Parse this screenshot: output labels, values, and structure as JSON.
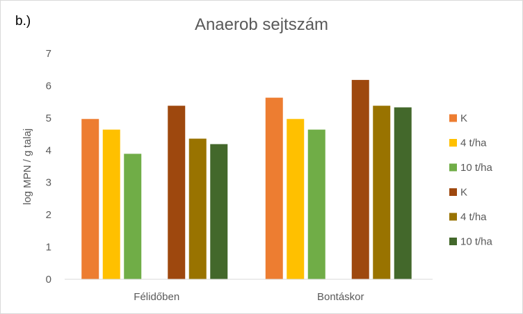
{
  "panel_label": "b.)",
  "chart_data": {
    "type": "bar",
    "title": "Anaerob sejtszám",
    "xlabel": "",
    "ylabel": "log MPN / g talaj",
    "ylim": [
      0,
      7
    ],
    "yticks": [
      0,
      1,
      2,
      3,
      4,
      5,
      6,
      7
    ],
    "grid": false,
    "legend_position": "right",
    "categories": [
      "Félidőben",
      "Bontáskor"
    ],
    "series": [
      {
        "name": "K",
        "color": "#ED7D31",
        "values": [
          4.97,
          5.63
        ]
      },
      {
        "name": "4 t/ha",
        "color": "#FFC000",
        "values": [
          4.64,
          4.97
        ]
      },
      {
        "name": "10 t/ha",
        "color": "#70AD47",
        "values": [
          3.89,
          4.64
        ]
      },
      {
        "name": "K",
        "color": "#9E480E",
        "values": [
          5.38,
          6.18
        ]
      },
      {
        "name": "4 t/ha",
        "color": "#997300",
        "values": [
          4.36,
          5.38
        ]
      },
      {
        "name": "10 t/ha",
        "color": "#43682B",
        "values": [
          4.19,
          5.33
        ]
      }
    ]
  }
}
